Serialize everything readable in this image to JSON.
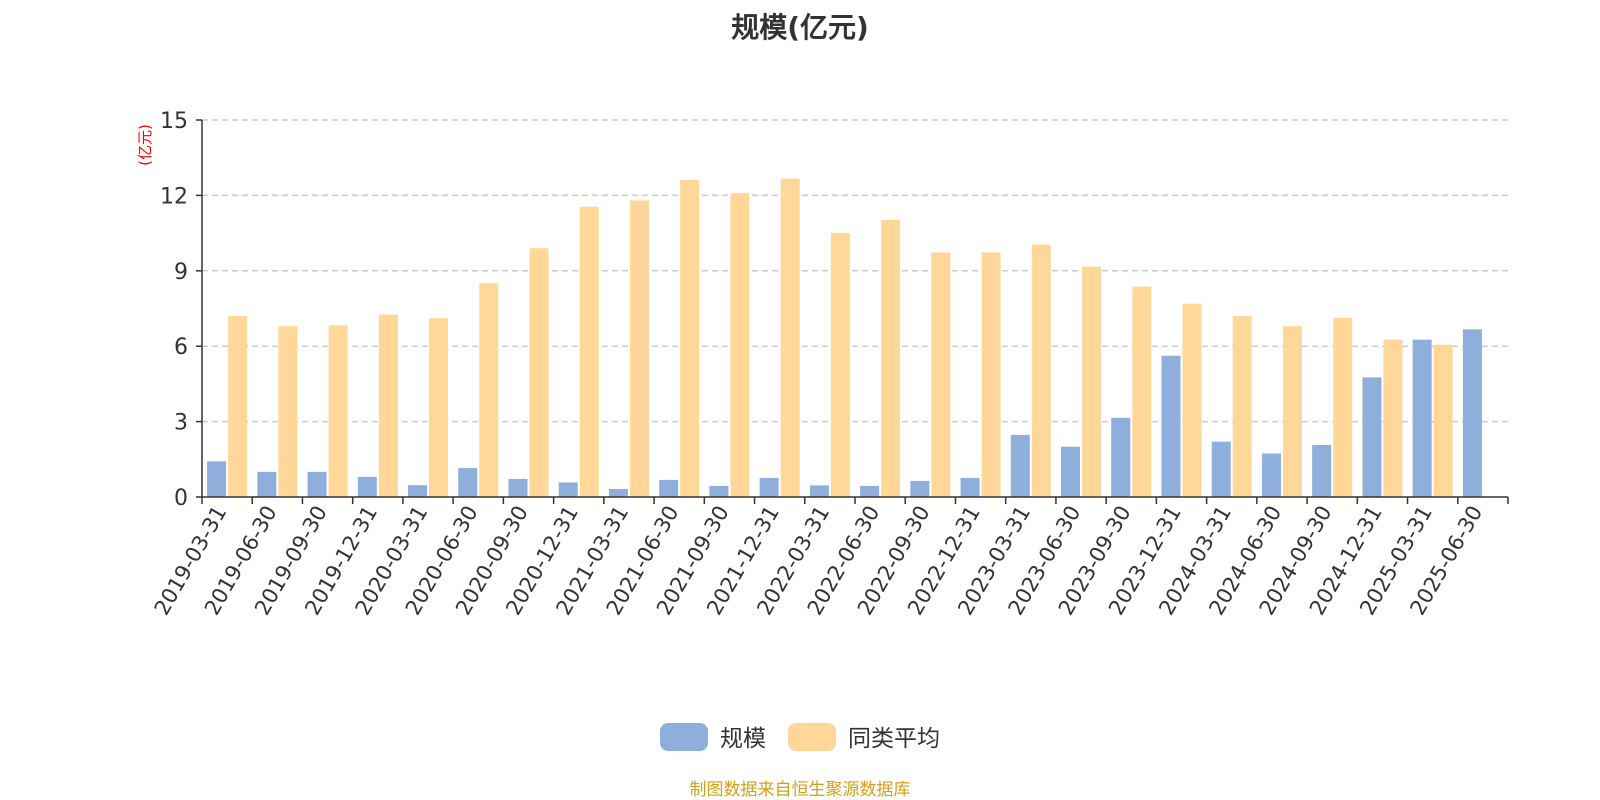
{
  "chart_data": {
    "type": "bar",
    "title": "规模(亿元)",
    "ylabel": "(亿元)",
    "xlabel": "",
    "ylim": [
      0,
      15
    ],
    "yticks": [
      0,
      3,
      6,
      9,
      12,
      15
    ],
    "grid": true,
    "legend_position": "bottom-center",
    "categories": [
      "2019-03-31",
      "2019-06-30",
      "2019-09-30",
      "2019-12-31",
      "2020-03-31",
      "2020-06-30",
      "2020-09-30",
      "2020-12-31",
      "2021-03-31",
      "2021-06-30",
      "2021-09-30",
      "2021-12-31",
      "2022-03-31",
      "2022-06-30",
      "2022-09-30",
      "2022-12-31",
      "2023-03-31",
      "2023-06-30",
      "2023-09-30",
      "2023-12-31",
      "2024-03-31",
      "2024-06-30",
      "2024-09-30",
      "2024-12-31",
      "2025-03-31",
      "2025-06-30"
    ],
    "series": [
      {
        "name": "规模",
        "color": "#8eaedb",
        "values": [
          1.42,
          1.0,
          1.0,
          0.8,
          0.47,
          1.15,
          0.72,
          0.58,
          0.32,
          0.68,
          0.44,
          0.76,
          0.46,
          0.44,
          0.64,
          0.76,
          2.47,
          2.0,
          3.15,
          5.62,
          2.2,
          1.73,
          2.07,
          4.76,
          6.26,
          6.67
        ]
      },
      {
        "name": "同类平均",
        "color": "#ffd899",
        "values": [
          7.2,
          6.8,
          6.83,
          7.26,
          7.11,
          8.5,
          9.9,
          11.55,
          11.8,
          12.62,
          12.09,
          12.67,
          10.51,
          11.03,
          9.73,
          9.73,
          10.04,
          9.17,
          8.37,
          7.69,
          7.2,
          6.8,
          7.13,
          6.26,
          6.06,
          null
        ]
      }
    ]
  },
  "footer": {
    "source_text": "制图数据来自恒生聚源数据库",
    "source_color": "#d4a017"
  },
  "style": {
    "ylabel_color": "#ff0000",
    "axis_color": "#333333",
    "grid_color": "#cccccc"
  }
}
